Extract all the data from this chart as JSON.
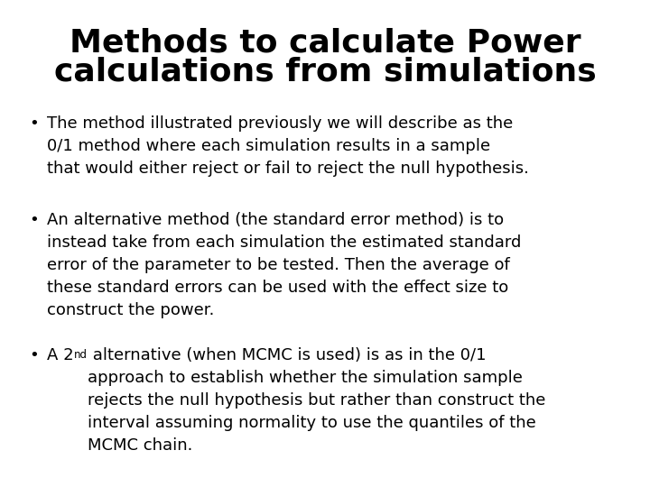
{
  "title_line1": "Methods to calculate Power",
  "title_line2": "calculations from simulations",
  "title_fontsize": 26,
  "title_fontweight": "bold",
  "background_color": "#ffffff",
  "text_color": "#000000",
  "bullet1": "The method illustrated previously we will describe as the\n0/1 method where each simulation results in a sample\nthat would either reject or fail to reject the null hypothesis.",
  "bullet2": "An alternative method (the standard error method) is to\ninstead take from each simulation the estimated standard\nerror of the parameter to be tested. Then the average of\nthese standard errors can be used with the effect size to\nconstruct the power.",
  "bullet3_pre": "A 2",
  "bullet3_sup": "nd",
  "bullet3_post": " alternative (when MCMC is used) is as in the 0/1\napproach to establish whether the simulation sample\nrejects the null hypothesis but rather than construct the\ninterval assuming normality to use the quantiles of the\nMCMC chain.",
  "bullet_fontsize": 13,
  "font_family": "DejaVu Sans"
}
